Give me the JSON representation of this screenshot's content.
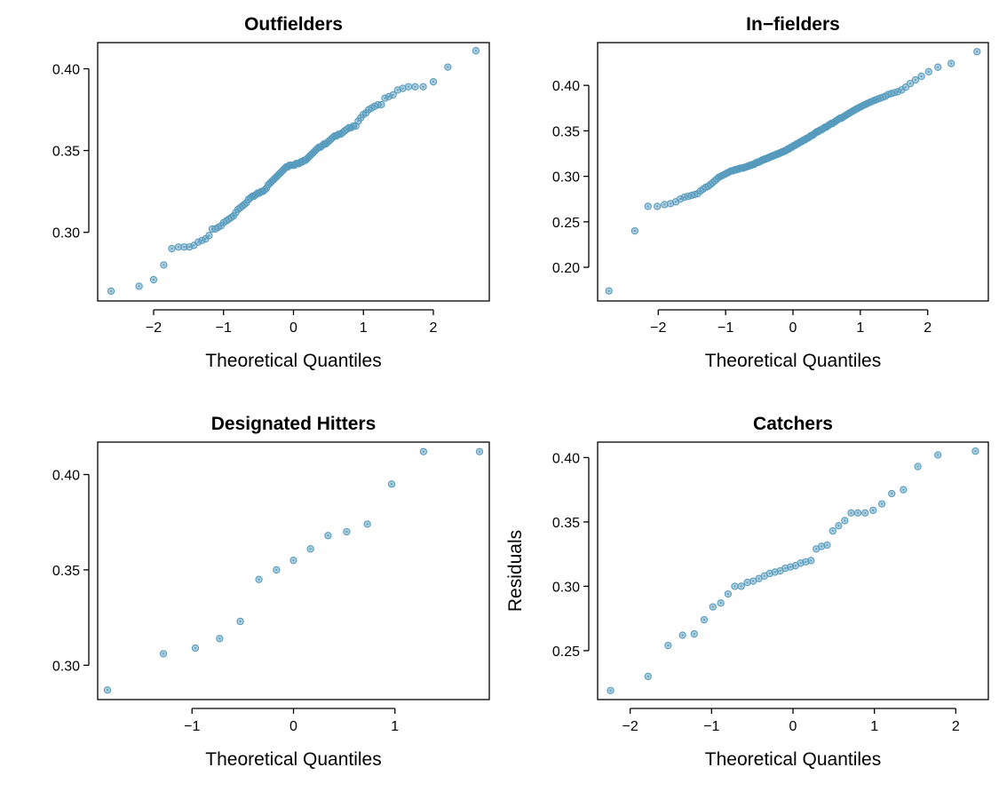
{
  "point_color": "#569BBD",
  "chart_data": [
    {
      "type": "scatter",
      "title": "Outfielders",
      "xlabel": "Theoretical Quantiles",
      "ylabel": "",
      "xlim": [
        -2.8,
        2.8
      ],
      "ylim": [
        0.258,
        0.416
      ],
      "xticks": [
        -2,
        -1,
        0,
        1,
        2
      ],
      "yticks": [
        0.3,
        0.35,
        0.4
      ],
      "xtick_labels": [
        "−2",
        "−1",
        "0",
        "1",
        "2"
      ],
      "ytick_labels": [
        "0.30",
        "0.35",
        "0.40"
      ],
      "n": 110,
      "y": [
        0.264,
        0.267,
        0.271,
        0.28,
        0.29,
        0.291,
        0.291,
        0.291,
        0.292,
        0.294,
        0.295,
        0.296,
        0.298,
        0.302,
        0.302,
        0.303,
        0.304,
        0.306,
        0.307,
        0.308,
        0.309,
        0.31,
        0.312,
        0.314,
        0.315,
        0.316,
        0.317,
        0.318,
        0.32,
        0.321,
        0.322,
        0.322,
        0.323,
        0.324,
        0.324,
        0.325,
        0.325,
        0.326,
        0.327,
        0.329,
        0.33,
        0.331,
        0.332,
        0.333,
        0.334,
        0.335,
        0.336,
        0.337,
        0.338,
        0.339,
        0.34,
        0.34,
        0.341,
        0.341,
        0.341,
        0.341,
        0.342,
        0.342,
        0.342,
        0.343,
        0.343,
        0.344,
        0.344,
        0.345,
        0.346,
        0.347,
        0.348,
        0.349,
        0.35,
        0.351,
        0.352,
        0.352,
        0.353,
        0.354,
        0.354,
        0.355,
        0.356,
        0.357,
        0.358,
        0.359,
        0.359,
        0.36,
        0.36,
        0.361,
        0.362,
        0.363,
        0.364,
        0.364,
        0.365,
        0.365,
        0.368,
        0.37,
        0.372,
        0.373,
        0.375,
        0.376,
        0.377,
        0.378,
        0.378,
        0.382,
        0.383,
        0.384,
        0.387,
        0.388,
        0.389,
        0.389,
        0.389,
        0.392,
        0.401,
        0.411
      ]
    },
    {
      "type": "scatter",
      "title": "In−fielders",
      "xlabel": "Theoretical Quantiles",
      "ylabel": "",
      "xlim": [
        -2.9,
        2.9
      ],
      "ylim": [
        0.163,
        0.447
      ],
      "xticks": [
        -2,
        -1,
        0,
        1,
        2
      ],
      "yticks": [
        0.2,
        0.25,
        0.3,
        0.35,
        0.4
      ],
      "xtick_labels": [
        "−2",
        "−1",
        "0",
        "1",
        "2"
      ],
      "ytick_labels": [
        "0.20",
        "0.25",
        "0.30",
        "0.35",
        "0.40"
      ],
      "n": 154,
      "y": [
        0.174,
        0.24,
        0.267,
        0.267,
        0.269,
        0.27,
        0.272,
        0.275,
        0.277,
        0.278,
        0.279,
        0.28,
        0.281,
        0.284,
        0.286,
        0.288,
        0.289,
        0.291,
        0.293,
        0.295,
        0.297,
        0.299,
        0.3,
        0.301,
        0.302,
        0.303,
        0.304,
        0.305,
        0.306,
        0.306,
        0.307,
        0.307,
        0.308,
        0.308,
        0.309,
        0.309,
        0.309,
        0.31,
        0.31,
        0.311,
        0.311,
        0.312,
        0.312,
        0.313,
        0.313,
        0.314,
        0.315,
        0.315,
        0.316,
        0.316,
        0.317,
        0.318,
        0.318,
        0.319,
        0.319,
        0.32,
        0.32,
        0.321,
        0.321,
        0.322,
        0.322,
        0.323,
        0.323,
        0.324,
        0.324,
        0.325,
        0.325,
        0.326,
        0.326,
        0.327,
        0.327,
        0.328,
        0.328,
        0.329,
        0.33,
        0.33,
        0.331,
        0.332,
        0.332,
        0.333,
        0.334,
        0.334,
        0.335,
        0.336,
        0.336,
        0.337,
        0.338,
        0.338,
        0.339,
        0.34,
        0.34,
        0.341,
        0.342,
        0.342,
        0.343,
        0.344,
        0.345,
        0.345,
        0.346,
        0.347,
        0.348,
        0.349,
        0.349,
        0.35,
        0.351,
        0.351,
        0.352,
        0.353,
        0.354,
        0.354,
        0.355,
        0.356,
        0.357,
        0.358,
        0.358,
        0.359,
        0.36,
        0.361,
        0.362,
        0.363,
        0.364,
        0.364,
        0.365,
        0.366,
        0.367,
        0.368,
        0.369,
        0.37,
        0.371,
        0.372,
        0.373,
        0.374,
        0.375,
        0.376,
        0.377,
        0.378,
        0.379,
        0.38,
        0.381,
        0.382,
        0.383,
        0.384,
        0.385,
        0.386,
        0.387,
        0.388,
        0.39,
        0.391,
        0.392,
        0.393,
        0.395,
        0.398,
        0.402,
        0.406,
        0.41,
        0.415,
        0.42,
        0.424,
        0.437
      ]
    },
    {
      "type": "scatter",
      "title": "Designated Hitters",
      "xlabel": "Theoretical Quantiles",
      "ylabel": "",
      "xlim": [
        -1.93,
        1.93
      ],
      "ylim": [
        0.282,
        0.417
      ],
      "xticks": [
        -1,
        0,
        1
      ],
      "yticks": [
        0.3,
        0.35,
        0.4
      ],
      "xtick_labels": [
        "−1",
        "0",
        "1"
      ],
      "ytick_labels": [
        "0.30",
        "0.35",
        "0.40"
      ],
      "n": 15,
      "y": [
        0.287,
        0.306,
        0.309,
        0.314,
        0.323,
        0.345,
        0.35,
        0.355,
        0.361,
        0.368,
        0.37,
        0.374,
        0.395,
        0.412,
        0.412
      ]
    },
    {
      "type": "scatter",
      "title": "Catchers",
      "xlabel": "Theoretical Quantiles",
      "ylabel": "Residuals",
      "xlim": [
        -2.4,
        2.4
      ],
      "ylim": [
        0.212,
        0.412
      ],
      "xticks": [
        -2,
        -1,
        0,
        1,
        2
      ],
      "yticks": [
        0.25,
        0.3,
        0.35,
        0.4
      ],
      "xtick_labels": [
        "−2",
        "−1",
        "0",
        "1",
        "2"
      ],
      "ytick_labels": [
        "0.25",
        "0.30",
        "0.35",
        "0.40"
      ],
      "n": 40,
      "y": [
        0.219,
        0.23,
        0.254,
        0.262,
        0.263,
        0.274,
        0.284,
        0.287,
        0.294,
        0.3,
        0.3,
        0.303,
        0.304,
        0.306,
        0.308,
        0.31,
        0.311,
        0.312,
        0.314,
        0.315,
        0.316,
        0.318,
        0.319,
        0.32,
        0.329,
        0.331,
        0.332,
        0.343,
        0.347,
        0.351,
        0.357,
        0.357,
        0.357,
        0.359,
        0.364,
        0.372,
        0.375,
        0.393,
        0.402,
        0.405
      ]
    }
  ]
}
